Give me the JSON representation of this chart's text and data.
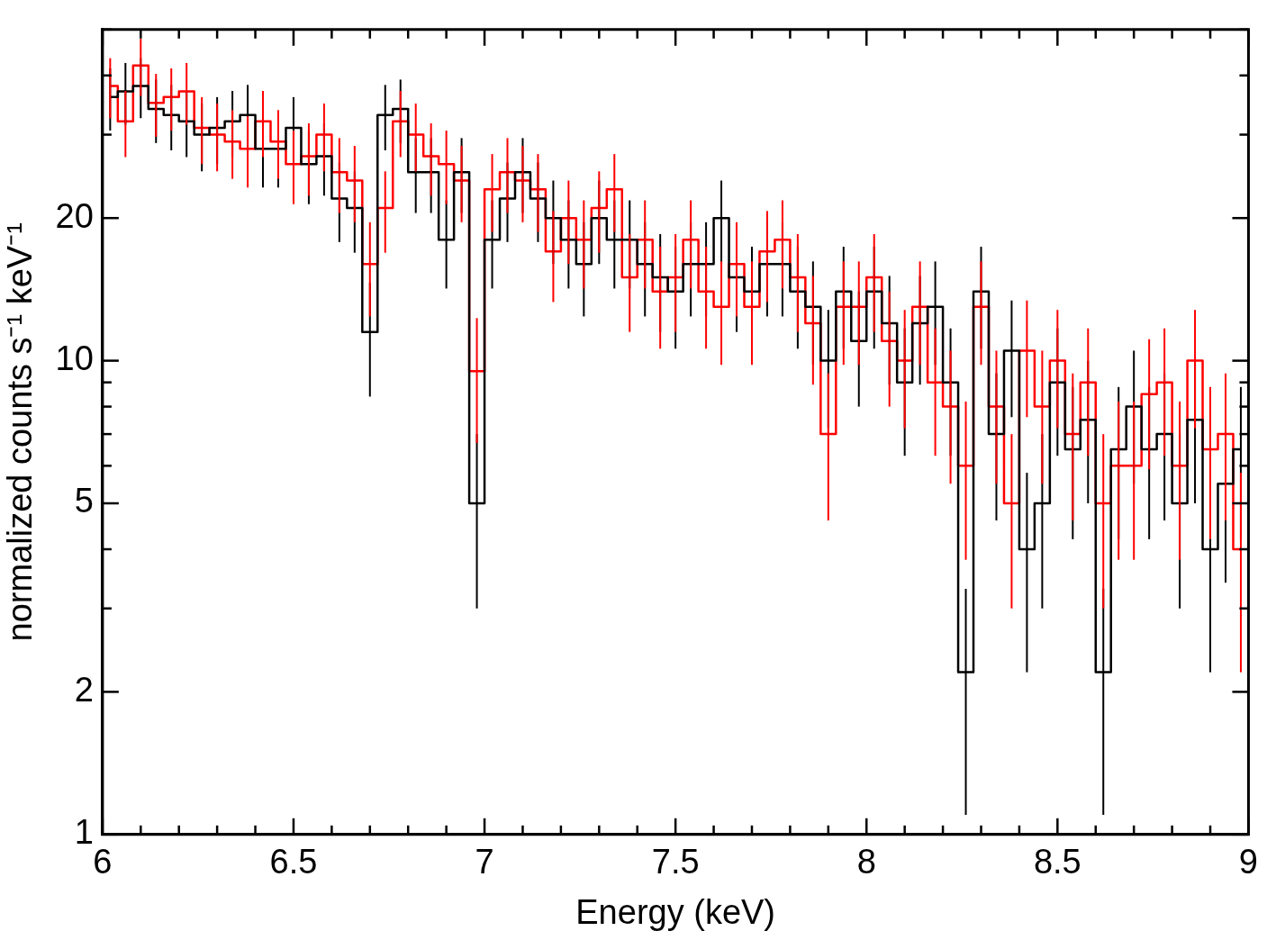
{
  "chart_data": {
    "type": "step",
    "xlabel": "Energy (keV)",
    "ylabel": "normalized counts s⁻¹ keV⁻¹",
    "log": "y",
    "xlim": [
      6,
      9
    ],
    "ylim": [
      1,
      50
    ],
    "xticks": [
      6,
      {
        "value": 6.1,
        "label": null
      },
      {
        "value": 6.2,
        "label": null
      },
      {
        "value": 6.3,
        "label": null
      },
      {
        "value": 6.4,
        "label": null
      },
      6.5,
      {
        "value": 6.6,
        "label": null
      },
      {
        "value": 6.7,
        "label": null
      },
      {
        "value": 6.8,
        "label": null
      },
      {
        "value": 6.9,
        "label": null
      },
      7,
      {
        "value": 7.1,
        "label": null
      },
      {
        "value": 7.2,
        "label": null
      },
      {
        "value": 7.3,
        "label": null
      },
      {
        "value": 7.4,
        "label": null
      },
      7.5,
      {
        "value": 7.6,
        "label": null
      },
      {
        "value": 7.7,
        "label": null
      },
      {
        "value": 7.8,
        "label": null
      },
      {
        "value": 7.9,
        "label": null
      },
      8,
      {
        "value": 8.1,
        "label": null
      },
      {
        "value": 8.2,
        "label": null
      },
      {
        "value": 8.3,
        "label": null
      },
      {
        "value": 8.4,
        "label": null
      },
      8.5,
      {
        "value": 8.6,
        "label": null
      },
      {
        "value": 8.7,
        "label": null
      },
      {
        "value": 8.8,
        "label": null
      },
      {
        "value": 8.9,
        "label": null
      },
      9
    ],
    "yticks": [
      1,
      2,
      {
        "value": 3,
        "label": null
      },
      {
        "value": 4,
        "label": null
      },
      5,
      {
        "value": 6,
        "label": null
      },
      {
        "value": 7,
        "label": null
      },
      {
        "value": 8,
        "label": null
      },
      {
        "value": 9,
        "label": null
      },
      10,
      20,
      {
        "value": 30,
        "label": null
      },
      {
        "value": 40,
        "label": null
      },
      {
        "value": 50,
        "label": null
      }
    ],
    "x": [
      6.02,
      6.06,
      6.1,
      6.14,
      6.18,
      6.22,
      6.26,
      6.3,
      6.34,
      6.38,
      6.42,
      6.46,
      6.5,
      6.54,
      6.58,
      6.62,
      6.66,
      6.7,
      6.74,
      6.78,
      6.82,
      6.86,
      6.9,
      6.94,
      6.98,
      7.02,
      7.06,
      7.1,
      7.14,
      7.18,
      7.22,
      7.26,
      7.3,
      7.34,
      7.38,
      7.42,
      7.46,
      7.5,
      7.54,
      7.58,
      7.62,
      7.66,
      7.7,
      7.74,
      7.78,
      7.82,
      7.86,
      7.9,
      7.94,
      7.98,
      8.02,
      8.06,
      8.1,
      8.14,
      8.18,
      8.22,
      8.26,
      8.3,
      8.34,
      8.38,
      8.42,
      8.46,
      8.5,
      8.54,
      8.58,
      8.62,
      8.66,
      8.7,
      8.74,
      8.78,
      8.82,
      8.86,
      8.9,
      8.94,
      8.98
    ],
    "series": [
      {
        "color": "#000000",
        "values": [
          36,
          37,
          38,
          34,
          33,
          32,
          30,
          31,
          32,
          33,
          28,
          28,
          31,
          26,
          27,
          22,
          21,
          11.5,
          33,
          34,
          25,
          25,
          18,
          25,
          5,
          18,
          22,
          25,
          22,
          20,
          18,
          16,
          20,
          18,
          18,
          16,
          15,
          14,
          16,
          16,
          20,
          15,
          14,
          16,
          16,
          14,
          13,
          10,
          14,
          11,
          14,
          12,
          9,
          12,
          13,
          9,
          2.2,
          14,
          7,
          10.5,
          4,
          5,
          9,
          6.5,
          7.5,
          2.2,
          6.5,
          8,
          6.5,
          7,
          5,
          7.5,
          4,
          5.5,
          6.5
        ],
        "errors": [
          5.4,
          5.5,
          5.5,
          5.2,
          5.2,
          5.1,
          4.9,
          5,
          5.1,
          5.2,
          4.8,
          4.8,
          5,
          4.6,
          4.7,
          4.2,
          4.1,
          3.1,
          5.2,
          5.2,
          4.5,
          4.5,
          3.8,
          4.5,
          2,
          3.8,
          4.2,
          4.5,
          4.2,
          4,
          3.8,
          3.6,
          4,
          3.8,
          3.8,
          3.6,
          3.5,
          3.4,
          3.6,
          3.6,
          4,
          3.5,
          3.4,
          3.6,
          3.6,
          3.4,
          3.2,
          2.8,
          3.4,
          3,
          3.4,
          3.1,
          2.7,
          3.1,
          3.2,
          2.7,
          1.1,
          3.4,
          2.4,
          2.9,
          1.8,
          2,
          2.7,
          2.3,
          2.5,
          1.1,
          2.3,
          2.5,
          2.3,
          2.4,
          2,
          2.5,
          1.8,
          2.1,
          2.3
        ]
      },
      {
        "color": "#ff0000",
        "values": [
          38,
          32,
          42,
          35,
          36,
          37,
          31,
          30,
          29,
          28,
          32,
          29,
          26,
          27,
          30,
          25,
          24,
          16,
          21,
          32,
          30,
          27,
          26,
          24,
          9.5,
          23,
          25,
          24,
          23,
          17,
          20,
          18,
          21,
          23,
          15,
          18,
          14,
          15,
          18,
          14,
          13,
          16,
          13,
          17,
          18,
          15,
          12,
          7,
          13,
          13,
          15,
          11,
          10,
          13,
          9,
          8,
          6,
          13,
          8,
          5,
          10.5,
          8,
          10,
          7,
          9,
          5,
          6,
          6,
          8.5,
          9,
          6,
          10,
          6.5,
          7,
          4
        ],
        "errors": [
          5.5,
          5.1,
          5.8,
          5.3,
          5.4,
          5.5,
          5,
          4.9,
          4.8,
          4.8,
          5.1,
          4.8,
          4.6,
          4.7,
          4.9,
          4.5,
          4.4,
          3.6,
          4.1,
          5.1,
          4.9,
          4.7,
          4.6,
          4.4,
          2.8,
          4.3,
          4.5,
          4.4,
          4.3,
          3.7,
          4,
          3.8,
          4.1,
          4.3,
          3.5,
          3.8,
          3.4,
          3.5,
          3.8,
          3.4,
          3.2,
          3.6,
          3.2,
          3.7,
          3.8,
          3.5,
          3.1,
          2.4,
          3.2,
          3.2,
          3.5,
          3,
          2.8,
          3.2,
          2.7,
          2.5,
          2.2,
          3.2,
          2.5,
          2,
          2.9,
          2.5,
          2.8,
          2.4,
          2.7,
          2,
          2.2,
          2.2,
          2.6,
          2.7,
          2.2,
          2.8,
          2.3,
          2.4,
          1.8
        ]
      }
    ]
  }
}
